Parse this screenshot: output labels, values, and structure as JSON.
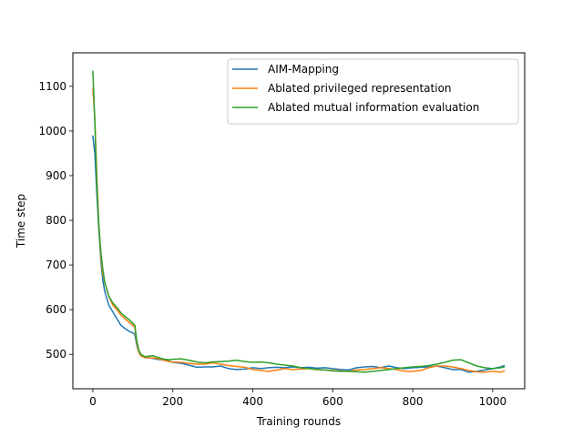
{
  "chart_data": {
    "type": "line",
    "title": "",
    "xlabel": "Training rounds",
    "ylabel": "Time step",
    "xlim": [
      -50,
      1080
    ],
    "ylim": [
      423,
      1175
    ],
    "xticks": [
      0,
      200,
      400,
      600,
      800,
      1000
    ],
    "yticks": [
      500,
      600,
      700,
      800,
      900,
      1000,
      1100
    ],
    "grid": false,
    "legend_position": "top-right",
    "series": [
      {
        "name": "AIM-Mapping",
        "color": "#1f77b4",
        "x": [
          0,
          5,
          10,
          15,
          20,
          25,
          30,
          40,
          50,
          60,
          70,
          80,
          90,
          100,
          105,
          110,
          115,
          120,
          130,
          140,
          150,
          160,
          170,
          180,
          190,
          200,
          220,
          240,
          260,
          280,
          300,
          320,
          340,
          360,
          380,
          400,
          420,
          440,
          460,
          480,
          500,
          520,
          540,
          560,
          580,
          600,
          620,
          640,
          660,
          680,
          700,
          720,
          740,
          760,
          780,
          800,
          820,
          840,
          860,
          880,
          900,
          920,
          940,
          960,
          980,
          1000,
          1020,
          1030
        ],
        "y": [
          990,
          950,
          860,
          780,
          710,
          665,
          640,
          610,
          595,
          580,
          565,
          558,
          552,
          548,
          545,
          520,
          505,
          497,
          493,
          492,
          491,
          489,
          488,
          487,
          485,
          482,
          480,
          476,
          471,
          472,
          472,
          474,
          468,
          466,
          467,
          470,
          468,
          470,
          471,
          470,
          472,
          470,
          471,
          469,
          470,
          468,
          466,
          465,
          470,
          472,
          473,
          470,
          474,
          470,
          468,
          470,
          471,
          472,
          474,
          470,
          466,
          466,
          460,
          462,
          465,
          468,
          472,
          475
        ]
      },
      {
        "name": "Ablated privileged representation",
        "color": "#ff7f0e",
        "x": [
          0,
          5,
          10,
          15,
          20,
          25,
          30,
          40,
          50,
          60,
          70,
          80,
          90,
          100,
          105,
          110,
          115,
          120,
          130,
          140,
          150,
          160,
          170,
          180,
          190,
          200,
          220,
          240,
          260,
          280,
          300,
          320,
          340,
          360,
          380,
          400,
          420,
          440,
          460,
          480,
          500,
          520,
          540,
          560,
          580,
          600,
          620,
          640,
          660,
          680,
          700,
          720,
          740,
          760,
          780,
          800,
          820,
          840,
          860,
          880,
          900,
          920,
          940,
          960,
          980,
          1000,
          1020,
          1030
        ],
        "y": [
          1095,
          1030,
          900,
          790,
          720,
          680,
          660,
          630,
          610,
          600,
          588,
          580,
          572,
          565,
          560,
          525,
          505,
          497,
          493,
          492,
          492,
          491,
          489,
          486,
          484,
          483,
          482,
          480,
          478,
          478,
          481,
          478,
          475,
          473,
          471,
          466,
          464,
          462,
          465,
          468,
          466,
          467,
          468,
          466,
          465,
          464,
          463,
          462,
          465,
          466,
          468,
          470,
          468,
          466,
          462,
          462,
          464,
          470,
          474,
          474,
          472,
          468,
          464,
          461,
          460,
          462,
          460,
          463
        ]
      },
      {
        "name": "Ablated mutual information evaluation",
        "color": "#2ca02c",
        "x": [
          0,
          5,
          10,
          15,
          20,
          25,
          30,
          40,
          50,
          60,
          70,
          80,
          90,
          100,
          105,
          110,
          115,
          120,
          130,
          140,
          150,
          160,
          170,
          180,
          190,
          200,
          220,
          240,
          260,
          280,
          300,
          320,
          340,
          360,
          380,
          400,
          420,
          440,
          460,
          480,
          500,
          520,
          540,
          560,
          580,
          600,
          620,
          640,
          660,
          680,
          700,
          720,
          740,
          760,
          780,
          800,
          820,
          840,
          860,
          880,
          900,
          920,
          940,
          960,
          980,
          1000,
          1020,
          1030
        ],
        "y": [
          1135,
          1020,
          880,
          790,
          730,
          690,
          660,
          630,
          615,
          605,
          593,
          585,
          578,
          570,
          565,
          530,
          510,
          500,
          495,
          496,
          497,
          494,
          491,
          489,
          488,
          489,
          490,
          487,
          483,
          481,
          483,
          484,
          485,
          487,
          484,
          482,
          483,
          481,
          478,
          476,
          474,
          470,
          468,
          466,
          465,
          463,
          462,
          462,
          461,
          460,
          462,
          464,
          466,
          468,
          470,
          472,
          473,
          475,
          478,
          482,
          487,
          488,
          481,
          474,
          470,
          468,
          470,
          472
        ]
      }
    ]
  }
}
